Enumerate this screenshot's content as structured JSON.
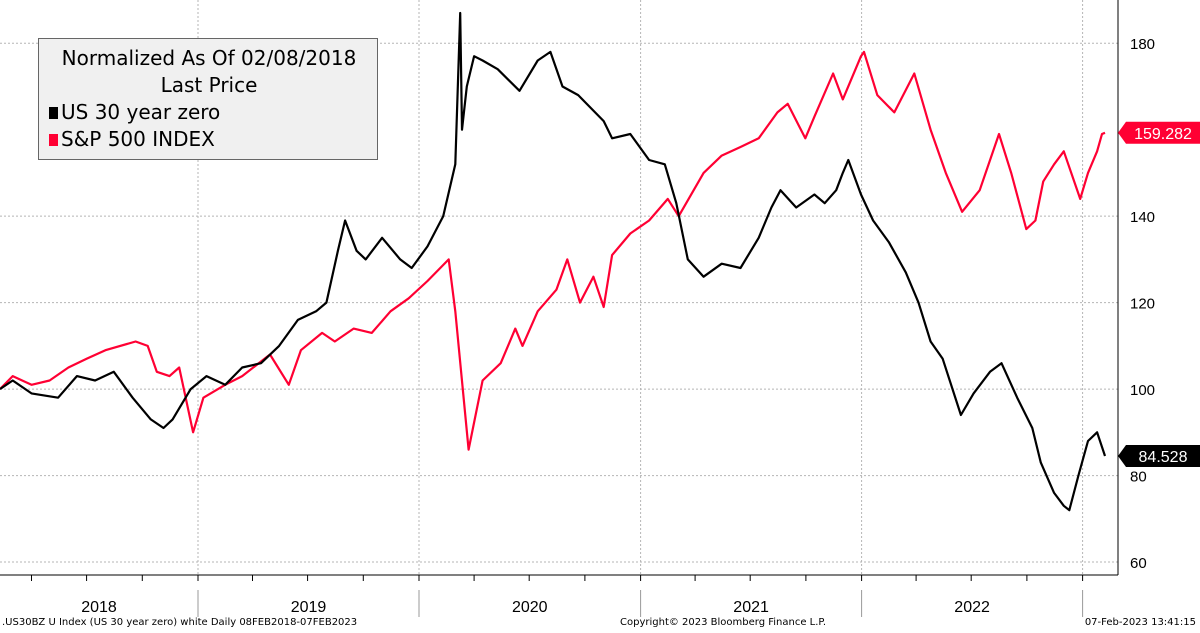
{
  "legend": {
    "title": "Normalized As Of 02/08/2018",
    "subtitle": "Last Price"
  },
  "footer": {
    "left": ".US30BZ U Index (US 30 year zero) white  Daily 08FEB2018-07FEB2023",
    "center": "Copyright© 2023 Bloomberg Finance L.P.",
    "right": "07-Feb-2023 13:41:15"
  },
  "chart_data": {
    "type": "line",
    "x_axis": {
      "labels": [
        "2018",
        "2019",
        "2020",
        "2021",
        "2022"
      ],
      "range": [
        "2018-02-08",
        "2023-02-07"
      ]
    },
    "y_axis": {
      "ticks": [
        60,
        80,
        100,
        120,
        140,
        180
      ],
      "range": [
        57,
        190
      ],
      "position": "right"
    },
    "grid": true,
    "legend_placement": "top-left",
    "series": [
      {
        "name": "US 30 year zero",
        "color": "#000000",
        "last_value": "84.528",
        "points": [
          [
            "2018-02-08",
            100
          ],
          [
            "2018-03-01",
            102
          ],
          [
            "2018-04-01",
            99
          ],
          [
            "2018-05-15",
            98
          ],
          [
            "2018-06-15",
            103
          ],
          [
            "2018-07-15",
            102
          ],
          [
            "2018-08-15",
            104
          ],
          [
            "2018-09-15",
            98
          ],
          [
            "2018-10-15",
            93
          ],
          [
            "2018-11-05",
            91
          ],
          [
            "2018-11-20",
            93
          ],
          [
            "2018-12-20",
            100
          ],
          [
            "2019-01-15",
            103
          ],
          [
            "2019-02-15",
            101
          ],
          [
            "2019-03-15",
            105
          ],
          [
            "2019-04-15",
            106
          ],
          [
            "2019-05-15",
            110
          ],
          [
            "2019-06-15",
            116
          ],
          [
            "2019-07-15",
            118
          ],
          [
            "2019-08-01",
            120
          ],
          [
            "2019-08-20",
            132
          ],
          [
            "2019-09-01",
            139
          ],
          [
            "2019-09-20",
            132
          ],
          [
            "2019-10-05",
            130
          ],
          [
            "2019-11-01",
            135
          ],
          [
            "2019-12-01",
            130
          ],
          [
            "2019-12-20",
            128
          ],
          [
            "2020-01-15",
            133
          ],
          [
            "2020-02-10",
            140
          ],
          [
            "2020-03-01",
            152
          ],
          [
            "2020-03-09",
            187
          ],
          [
            "2020-03-12",
            160
          ],
          [
            "2020-03-20",
            170
          ],
          [
            "2020-04-01",
            177
          ],
          [
            "2020-04-15",
            176
          ],
          [
            "2020-05-10",
            174
          ],
          [
            "2020-06-15",
            169
          ],
          [
            "2020-07-15",
            176
          ],
          [
            "2020-08-05",
            178
          ],
          [
            "2020-08-25",
            170
          ],
          [
            "2020-09-20",
            168
          ],
          [
            "2020-11-01",
            162
          ],
          [
            "2020-11-15",
            158
          ],
          [
            "2020-12-15",
            159
          ],
          [
            "2021-01-15",
            153
          ],
          [
            "2021-02-10",
            152
          ],
          [
            "2021-03-01",
            143
          ],
          [
            "2021-03-20",
            130
          ],
          [
            "2021-04-15",
            126
          ],
          [
            "2021-05-15",
            129
          ],
          [
            "2021-06-15",
            128
          ],
          [
            "2021-07-15",
            135
          ],
          [
            "2021-08-05",
            142
          ],
          [
            "2021-08-20",
            146
          ],
          [
            "2021-09-15",
            142
          ],
          [
            "2021-10-15",
            145
          ],
          [
            "2021-11-01",
            143
          ],
          [
            "2021-11-20",
            146
          ],
          [
            "2021-12-01",
            150
          ],
          [
            "2021-12-10",
            153
          ],
          [
            "2021-12-31",
            145
          ],
          [
            "2022-01-20",
            139
          ],
          [
            "2022-02-15",
            134
          ],
          [
            "2022-03-15",
            127
          ],
          [
            "2022-04-05",
            120
          ],
          [
            "2022-04-25",
            111
          ],
          [
            "2022-05-15",
            107
          ],
          [
            "2022-06-14",
            94
          ],
          [
            "2022-07-05",
            99
          ],
          [
            "2022-08-01",
            104
          ],
          [
            "2022-08-20",
            106
          ],
          [
            "2022-09-15",
            98
          ],
          [
            "2022-10-10",
            91
          ],
          [
            "2022-10-24",
            83
          ],
          [
            "2022-11-15",
            76
          ],
          [
            "2022-12-01",
            73
          ],
          [
            "2022-12-10",
            72
          ],
          [
            "2022-12-25",
            80
          ],
          [
            "2023-01-10",
            88
          ],
          [
            "2023-01-25",
            90
          ],
          [
            "2023-02-07",
            84.528
          ]
        ]
      },
      {
        "name": "S&P 500 INDEX",
        "color": "#ff0033",
        "last_value": "159.282",
        "points": [
          [
            "2018-02-08",
            100
          ],
          [
            "2018-03-01",
            103
          ],
          [
            "2018-04-01",
            101
          ],
          [
            "2018-05-01",
            102
          ],
          [
            "2018-06-01",
            105
          ],
          [
            "2018-07-01",
            107
          ],
          [
            "2018-08-01",
            109
          ],
          [
            "2018-09-20",
            111
          ],
          [
            "2018-10-10",
            110
          ],
          [
            "2018-10-25",
            104
          ],
          [
            "2018-11-15",
            103
          ],
          [
            "2018-12-01",
            105
          ],
          [
            "2018-12-24",
            90
          ],
          [
            "2019-01-10",
            98
          ],
          [
            "2019-02-15",
            101
          ],
          [
            "2019-03-15",
            103
          ],
          [
            "2019-04-30",
            108
          ],
          [
            "2019-05-31",
            101
          ],
          [
            "2019-06-20",
            109
          ],
          [
            "2019-07-25",
            113
          ],
          [
            "2019-08-15",
            111
          ],
          [
            "2019-09-15",
            114
          ],
          [
            "2019-10-15",
            113
          ],
          [
            "2019-11-15",
            118
          ],
          [
            "2019-12-15",
            121
          ],
          [
            "2020-01-15",
            125
          ],
          [
            "2020-02-19",
            130
          ],
          [
            "2020-03-01",
            118
          ],
          [
            "2020-03-23",
            86
          ],
          [
            "2020-04-15",
            102
          ],
          [
            "2020-05-15",
            106
          ],
          [
            "2020-06-08",
            114
          ],
          [
            "2020-06-20",
            110
          ],
          [
            "2020-07-15",
            118
          ],
          [
            "2020-08-15",
            123
          ],
          [
            "2020-09-02",
            130
          ],
          [
            "2020-09-23",
            120
          ],
          [
            "2020-10-15",
            126
          ],
          [
            "2020-11-01",
            119
          ],
          [
            "2020-11-15",
            131
          ],
          [
            "2020-12-15",
            136
          ],
          [
            "2021-01-15",
            139
          ],
          [
            "2021-02-15",
            144
          ],
          [
            "2021-03-05",
            140
          ],
          [
            "2021-04-15",
            150
          ],
          [
            "2021-05-15",
            154
          ],
          [
            "2021-06-15",
            156
          ],
          [
            "2021-07-15",
            158
          ],
          [
            "2021-08-15",
            164
          ],
          [
            "2021-09-01",
            166
          ],
          [
            "2021-09-30",
            158
          ],
          [
            "2021-10-15",
            163
          ],
          [
            "2021-11-15",
            173
          ],
          [
            "2021-12-01",
            167
          ],
          [
            "2021-12-31",
            177
          ],
          [
            "2022-01-05",
            178
          ],
          [
            "2022-01-27",
            168
          ],
          [
            "2022-02-24",
            164
          ],
          [
            "2022-03-29",
            173
          ],
          [
            "2022-04-25",
            160
          ],
          [
            "2022-05-20",
            150
          ],
          [
            "2022-06-16",
            141
          ],
          [
            "2022-07-15",
            146
          ],
          [
            "2022-08-16",
            159
          ],
          [
            "2022-09-05",
            150
          ],
          [
            "2022-09-30",
            137
          ],
          [
            "2022-10-15",
            139
          ],
          [
            "2022-10-28",
            148
          ],
          [
            "2022-11-15",
            152
          ],
          [
            "2022-12-01",
            155
          ],
          [
            "2022-12-28",
            144
          ],
          [
            "2023-01-10",
            150
          ],
          [
            "2023-01-25",
            155
          ],
          [
            "2023-02-02",
            159
          ],
          [
            "2023-02-07",
            159.282
          ]
        ]
      }
    ]
  }
}
